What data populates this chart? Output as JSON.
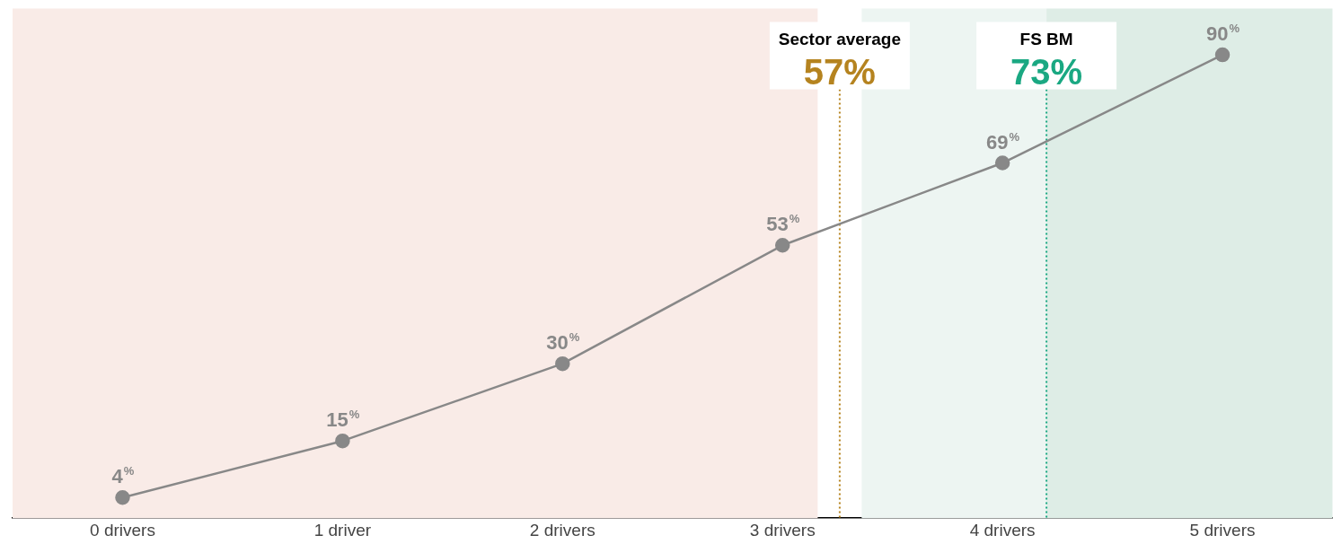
{
  "chart_data": {
    "type": "line",
    "x": [
      0,
      1,
      2,
      3,
      4,
      5
    ],
    "xlim": [
      -0.5,
      5.5
    ],
    "xticks": [
      {
        "value": 0,
        "label": "0 drivers"
      },
      {
        "value": 1,
        "label": "1 driver"
      },
      {
        "value": 2,
        "label": "2 drivers"
      },
      {
        "value": 3,
        "label": "3 drivers"
      },
      {
        "value": 4,
        "label": "4 drivers"
      },
      {
        "value": 5,
        "label": "5 drivers"
      }
    ],
    "ylim": [
      0,
      99
    ],
    "tick_labels": "x",
    "series": [
      {
        "color": "#888888",
        "values": [
          4,
          15,
          30,
          53,
          69,
          90
        ]
      }
    ],
    "value_labels": [
      "4%",
      "15%",
      "30%",
      "53%",
      "69%",
      "90%"
    ],
    "data_labels": true,
    "marker": "circle",
    "line_style": "solid",
    "grid": false,
    "legend": false,
    "bands": [
      {
        "axis": "x",
        "from": -0.5,
        "to": 3.16,
        "color": "#f9ebe7"
      },
      {
        "axis": "x",
        "from": 3.36,
        "to": 4.2,
        "color": "#edf5f2"
      },
      {
        "axis": "x",
        "from": 4.2,
        "to": 5.5,
        "color": "#deede6"
      }
    ],
    "ref_lines": [
      {
        "axis": "x",
        "value": 3.26,
        "label": "Sector average 57%",
        "color": "#b5831f",
        "line_style": "dotted"
      },
      {
        "axis": "x",
        "value": 4.2,
        "label": "FS BM 73%",
        "color": "#1aa882",
        "line_style": "dotted"
      }
    ]
  }
}
